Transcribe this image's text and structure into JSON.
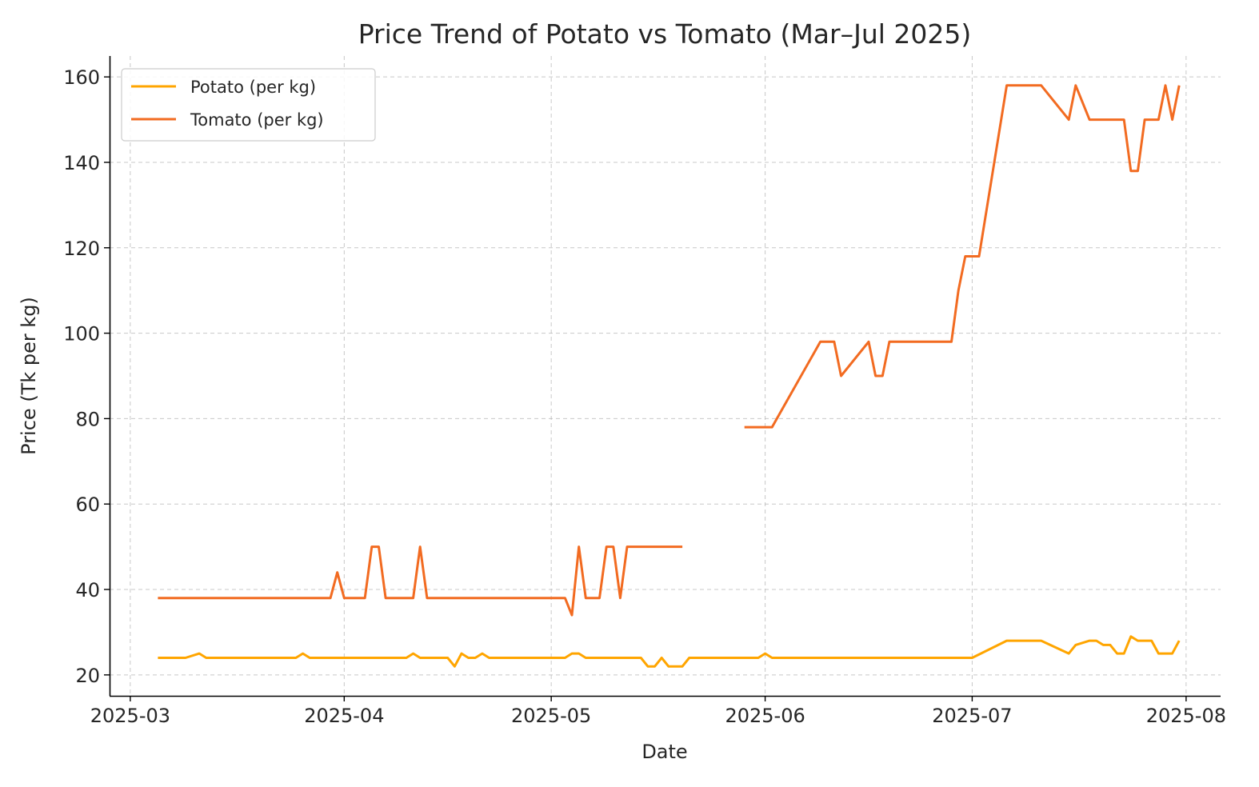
{
  "chart_data": {
    "type": "line",
    "title": "Price Trend of Potato vs Tomato (Mar–Jul 2025)",
    "xlabel": "Date",
    "ylabel": "Price (Tk per kg)",
    "xlim": [
      "2025-02-26",
      "2025-08-06"
    ],
    "ylim": [
      15.1,
      164.9
    ],
    "x_ticks": [
      "2025-03-01",
      "2025-04-01",
      "2025-05-01",
      "2025-06-01",
      "2025-07-01",
      "2025-08-01"
    ],
    "x_tick_labels": [
      "2025-03",
      "2025-04",
      "2025-05",
      "2025-06",
      "2025-07",
      "2025-08"
    ],
    "y_ticks": [
      20,
      40,
      60,
      80,
      100,
      120,
      140,
      160
    ],
    "grid": true,
    "legend_position": "top-left",
    "series": [
      {
        "name": "Potato (per kg)",
        "color": "#FFA500",
        "segments": [
          [
            [
              "2025-03-05",
              24
            ],
            [
              "2025-03-09",
              24
            ],
            [
              "2025-03-11",
              25
            ],
            [
              "2025-03-12",
              24
            ],
            [
              "2025-03-25",
              24
            ],
            [
              "2025-03-26",
              25
            ],
            [
              "2025-03-27",
              24
            ],
            [
              "2025-04-10",
              24
            ],
            [
              "2025-04-11",
              25
            ],
            [
              "2025-04-12",
              24
            ],
            [
              "2025-04-16",
              24
            ],
            [
              "2025-04-17",
              22
            ],
            [
              "2025-04-18",
              25
            ],
            [
              "2025-04-19",
              24
            ],
            [
              "2025-04-20",
              24
            ],
            [
              "2025-04-21",
              25
            ],
            [
              "2025-04-22",
              24
            ],
            [
              "2025-05-03",
              24
            ],
            [
              "2025-05-04",
              25
            ],
            [
              "2025-05-05",
              25
            ],
            [
              "2025-05-06",
              24
            ],
            [
              "2025-05-14",
              24
            ],
            [
              "2025-05-15",
              22
            ],
            [
              "2025-05-16",
              22
            ],
            [
              "2025-05-17",
              24
            ],
            [
              "2025-05-18",
              22
            ],
            [
              "2025-05-20",
              22
            ],
            [
              "2025-05-21",
              24
            ],
            [
              "2025-05-31",
              24
            ],
            [
              "2025-06-01",
              25
            ],
            [
              "2025-06-02",
              24
            ],
            [
              "2025-07-01",
              24
            ],
            [
              "2025-07-06",
              28
            ],
            [
              "2025-07-11",
              28
            ],
            [
              "2025-07-15",
              25
            ],
            [
              "2025-07-16",
              27
            ],
            [
              "2025-07-18",
              28
            ],
            [
              "2025-07-19",
              28
            ],
            [
              "2025-07-20",
              27
            ],
            [
              "2025-07-21",
              27
            ],
            [
              "2025-07-22",
              25
            ],
            [
              "2025-07-23",
              25
            ],
            [
              "2025-07-24",
              29
            ],
            [
              "2025-07-25",
              28
            ],
            [
              "2025-07-27",
              28
            ],
            [
              "2025-07-28",
              25
            ],
            [
              "2025-07-30",
              25
            ],
            [
              "2025-07-31",
              28
            ]
          ]
        ]
      },
      {
        "name": "Tomato (per kg)",
        "color": "#F26B21",
        "segments": [
          [
            [
              "2025-03-05",
              38
            ],
            [
              "2025-03-30",
              38
            ],
            [
              "2025-03-31",
              44
            ],
            [
              "2025-04-01",
              38
            ],
            [
              "2025-04-04",
              38
            ],
            [
              "2025-04-05",
              50
            ],
            [
              "2025-04-06",
              50
            ],
            [
              "2025-04-07",
              38
            ],
            [
              "2025-04-11",
              38
            ],
            [
              "2025-04-12",
              50
            ],
            [
              "2025-04-13",
              38
            ],
            [
              "2025-05-03",
              38
            ],
            [
              "2025-05-04",
              34
            ],
            [
              "2025-05-05",
              50
            ],
            [
              "2025-05-06",
              38
            ],
            [
              "2025-05-08",
              38
            ],
            [
              "2025-05-09",
              50
            ],
            [
              "2025-05-10",
              50
            ],
            [
              "2025-05-11",
              38
            ],
            [
              "2025-05-12",
              50
            ],
            [
              "2025-05-20",
              50
            ]
          ],
          [
            [
              "2025-05-29",
              78
            ],
            [
              "2025-06-02",
              78
            ],
            [
              "2025-06-09",
              98
            ],
            [
              "2025-06-11",
              98
            ],
            [
              "2025-06-12",
              90
            ],
            [
              "2025-06-16",
              98
            ],
            [
              "2025-06-17",
              90
            ],
            [
              "2025-06-18",
              90
            ],
            [
              "2025-06-19",
              98
            ],
            [
              "2025-06-28",
              98
            ],
            [
              "2025-06-29",
              110
            ],
            [
              "2025-06-30",
              118
            ],
            [
              "2025-07-02",
              118
            ],
            [
              "2025-07-06",
              158
            ],
            [
              "2025-07-11",
              158
            ],
            [
              "2025-07-15",
              150
            ],
            [
              "2025-07-16",
              158
            ],
            [
              "2025-07-18",
              150
            ],
            [
              "2025-07-23",
              150
            ],
            [
              "2025-07-24",
              138
            ],
            [
              "2025-07-25",
              138
            ],
            [
              "2025-07-26",
              150
            ],
            [
              "2025-07-28",
              150
            ],
            [
              "2025-07-29",
              158
            ],
            [
              "2025-07-30",
              150
            ],
            [
              "2025-07-31",
              158
            ]
          ]
        ]
      }
    ]
  }
}
